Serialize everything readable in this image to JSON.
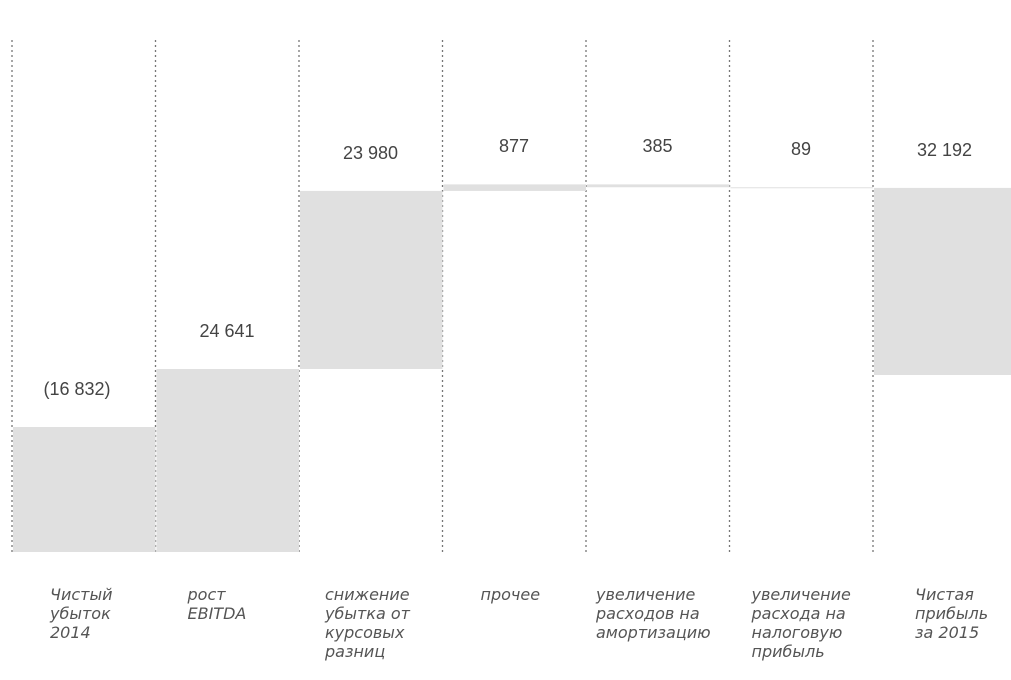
{
  "chart_data": {
    "type": "waterfall",
    "title": "",
    "xlabel": "",
    "ylabel": "",
    "grid": false,
    "legend": "none",
    "bar_color": "#e0e0e0",
    "divider_color": "#777777",
    "categories": [
      "Чистый\nубыток\n2014",
      "рост\nEBITDA",
      "снижение\nубытка от\nкурсовых\nразниц",
      "прочее",
      "увеличение\nрасходов на\nамортизацию",
      "увеличение\nрасхода на\nналоговую\nприбыль",
      "Чистая\nприбыль\nза 2015"
    ],
    "labels": [
      "(16 832)",
      "24 641",
      "23 980",
      "877",
      "385",
      "89",
      "32 192"
    ],
    "bars": [
      {
        "start": -16832,
        "end": 0
      },
      {
        "start": -16832,
        "end": 7809
      },
      {
        "start": 7809,
        "end": 31789
      },
      {
        "start": 31789,
        "end": 32666
      },
      {
        "start": 32281,
        "end": 32666
      },
      {
        "start": 32192,
        "end": 32281
      },
      {
        "start": 7000,
        "end": 32192
      }
    ]
  }
}
